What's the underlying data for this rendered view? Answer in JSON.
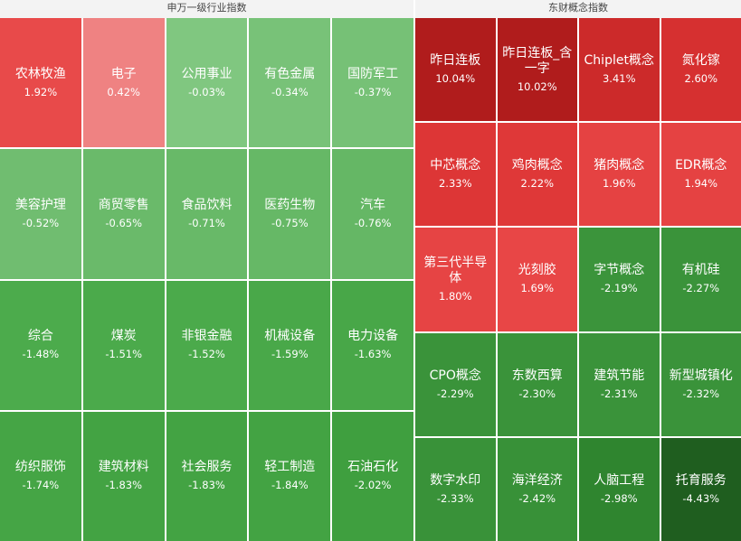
{
  "chart_data": [
    {
      "type": "treemap",
      "title": "申万一级行业指数",
      "columns": 5,
      "rows": 4,
      "items": [
        {
          "name": "农林牧渔",
          "value": 1.92,
          "label": "1.92%",
          "color": "#e84a4a"
        },
        {
          "name": "电子",
          "value": 0.42,
          "label": "0.42%",
          "color": "#ef8282"
        },
        {
          "name": "公用事业",
          "value": -0.03,
          "label": "-0.03%",
          "color": "#80c780"
        },
        {
          "name": "有色金属",
          "value": -0.34,
          "label": "-0.34%",
          "color": "#78c278"
        },
        {
          "name": "国防军工",
          "value": -0.37,
          "label": "-0.37%",
          "color": "#76c176"
        },
        {
          "name": "美容护理",
          "value": -0.52,
          "label": "-0.52%",
          "color": "#70bd70"
        },
        {
          "name": "商贸零售",
          "value": -0.65,
          "label": "-0.65%",
          "color": "#6aba6a"
        },
        {
          "name": "食品饮料",
          "value": -0.71,
          "label": "-0.71%",
          "color": "#68b968"
        },
        {
          "name": "医药生物",
          "value": -0.75,
          "label": "-0.75%",
          "color": "#66b866"
        },
        {
          "name": "汽车",
          "value": -0.76,
          "label": "-0.76%",
          "color": "#65b765"
        },
        {
          "name": "综合",
          "value": -1.48,
          "label": "-1.48%",
          "color": "#4cab4c"
        },
        {
          "name": "煤炭",
          "value": -1.51,
          "label": "-1.51%",
          "color": "#4baa4b"
        },
        {
          "name": "非银金融",
          "value": -1.52,
          "label": "-1.52%",
          "color": "#4baa4b"
        },
        {
          "name": "机械设备",
          "value": -1.59,
          "label": "-1.59%",
          "color": "#49a849"
        },
        {
          "name": "电力设备",
          "value": -1.63,
          "label": "-1.63%",
          "color": "#48a748"
        },
        {
          "name": "纺织服饰",
          "value": -1.74,
          "label": "-1.74%",
          "color": "#45a545"
        },
        {
          "name": "建筑材料",
          "value": -1.83,
          "label": "-1.83%",
          "color": "#43a343"
        },
        {
          "name": "社会服务",
          "value": -1.83,
          "label": "-1.83%",
          "color": "#43a343"
        },
        {
          "name": "轻工制造",
          "value": -1.84,
          "label": "-1.84%",
          "color": "#43a343"
        },
        {
          "name": "石油石化",
          "value": -2.02,
          "label": "-2.02%",
          "color": "#3f9f3f"
        }
      ]
    },
    {
      "type": "treemap",
      "title": "东财概念指数",
      "columns": 4,
      "rows": 5,
      "items": [
        {
          "name": "昨日连板",
          "value": 10.04,
          "label": "10.04%",
          "color": "#b01c1c"
        },
        {
          "name": "昨日连板_含一字",
          "value": 10.02,
          "label": "10.02%",
          "color": "#b01c1c"
        },
        {
          "name": "Chiplet概念",
          "value": 3.41,
          "label": "3.41%",
          "color": "#cc2a2a"
        },
        {
          "name": "氮化镓",
          "value": 2.6,
          "label": "2.60%",
          "color": "#d63030"
        },
        {
          "name": "中芯概念",
          "value": 2.33,
          "label": "2.33%",
          "color": "#dd3636"
        },
        {
          "name": "鸡肉概念",
          "value": 2.22,
          "label": "2.22%",
          "color": "#df3838"
        },
        {
          "name": "猪肉概念",
          "value": 1.96,
          "label": "1.96%",
          "color": "#e54242"
        },
        {
          "name": "EDR概念",
          "value": 1.94,
          "label": "1.94%",
          "color": "#e54242"
        },
        {
          "name": "第三代半导体",
          "value": 1.8,
          "label": "1.80%",
          "color": "#e64444"
        },
        {
          "name": "光刻胶",
          "value": 1.69,
          "label": "1.69%",
          "color": "#e84646"
        },
        {
          "name": "字节概念",
          "value": -2.19,
          "label": "-2.19%",
          "color": "#3b943b"
        },
        {
          "name": "有机硅",
          "value": -2.27,
          "label": "-2.27%",
          "color": "#3a933a"
        },
        {
          "name": "CPO概念",
          "value": -2.29,
          "label": "-2.29%",
          "color": "#3a933a"
        },
        {
          "name": "东数西算",
          "value": -2.3,
          "label": "-2.30%",
          "color": "#3a933a"
        },
        {
          "name": "建筑节能",
          "value": -2.31,
          "label": "-2.31%",
          "color": "#3a933a"
        },
        {
          "name": "新型城镇化",
          "value": -2.32,
          "label": "-2.32%",
          "color": "#3a933a"
        },
        {
          "name": "数字水印",
          "value": -2.33,
          "label": "-2.33%",
          "color": "#399239"
        },
        {
          "name": "海洋经济",
          "value": -2.42,
          "label": "-2.42%",
          "color": "#389138"
        },
        {
          "name": "人脑工程",
          "value": -2.98,
          "label": "-2.98%",
          "color": "#2f852f"
        },
        {
          "name": "托育服务",
          "value": -4.43,
          "label": "-4.43%",
          "color": "#1f5e1f"
        }
      ]
    }
  ]
}
